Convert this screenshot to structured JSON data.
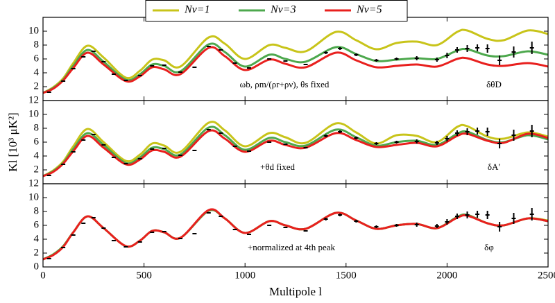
{
  "chart_data": [
    {
      "type": "line",
      "annotations": [
        "ωb, ρm/(ρr+ρν), θs fixed",
        "δθD"
      ],
      "x": [
        0,
        50,
        100,
        150,
        220,
        300,
        410,
        480,
        540,
        600,
        680,
        820,
        900,
        1000,
        1120,
        1200,
        1300,
        1450,
        1550,
        1650,
        1750,
        1850,
        1950,
        2050,
        2100,
        2200,
        2280,
        2400,
        2500
      ],
      "series": [
        {
          "name": "Nν=1",
          "color": "#c8c41a",
          "values": [
            1.1,
            1.9,
            3.2,
            5.4,
            7.9,
            6.2,
            3.3,
            4.3,
            5.9,
            5.8,
            4.9,
            9.1,
            8.2,
            6.0,
            8.0,
            7.6,
            7.1,
            9.9,
            8.7,
            7.4,
            8.3,
            8.5,
            8.0,
            9.9,
            10.1,
            8.9,
            8.7,
            10.1,
            9.6
          ]
        },
        {
          "name": "Nν=3",
          "color": "#4da84d",
          "values": [
            1.1,
            1.8,
            3.0,
            5.0,
            7.3,
            5.6,
            3.0,
            3.8,
            5.2,
            5.0,
            4.2,
            8.1,
            7.0,
            4.9,
            6.6,
            6.0,
            5.6,
            7.7,
            6.7,
            5.7,
            5.9,
            6.1,
            6.0,
            7.2,
            7.4,
            6.5,
            6.4,
            7.1,
            6.6
          ]
        },
        {
          "name": "Nν=5",
          "color": "#e8201e",
          "values": [
            1.1,
            1.7,
            2.9,
            4.7,
            6.9,
            5.2,
            2.8,
            3.5,
            4.8,
            4.5,
            3.8,
            7.6,
            6.4,
            4.4,
            5.9,
            5.3,
            4.8,
            6.9,
            5.8,
            4.8,
            5.0,
            5.2,
            4.9,
            6.0,
            6.1,
            5.2,
            5.0,
            5.4,
            4.9
          ]
        }
      ],
      "observations": {
        "x": [
          30,
          100,
          150,
          200,
          250,
          300,
          350,
          410,
          480,
          540,
          600,
          680,
          750,
          820,
          880,
          950,
          1020,
          1120,
          1200,
          1300,
          1400,
          1470,
          1550,
          1650,
          1750,
          1850,
          1950,
          2000,
          2050,
          2100,
          2150,
          2200,
          2260,
          2330,
          2420
        ],
        "values": [
          1.2,
          2.8,
          4.6,
          6.3,
          7.1,
          5.6,
          3.8,
          2.9,
          3.6,
          5.0,
          5.1,
          4.1,
          4.8,
          7.8,
          7.3,
          5.4,
          4.7,
          6.0,
          5.7,
          5.2,
          6.9,
          7.5,
          6.6,
          5.8,
          6.0,
          6.1,
          5.9,
          6.5,
          7.3,
          7.5,
          7.6,
          7.5,
          5.8,
          7.0,
          7.6
        ],
        "errors": [
          0.1,
          0.1,
          0.1,
          0.1,
          0.1,
          0.1,
          0.1,
          0.1,
          0.1,
          0.1,
          0.1,
          0.1,
          0.1,
          0.1,
          0.1,
          0.1,
          0.1,
          0.1,
          0.1,
          0.1,
          0.2,
          0.2,
          0.2,
          0.2,
          0.2,
          0.3,
          0.3,
          0.4,
          0.4,
          0.5,
          0.5,
          0.6,
          0.7,
          0.8,
          0.9
        ]
      },
      "xlim": [
        0,
        2500
      ],
      "xticks": [
        0,
        500,
        1000,
        1500,
        2000,
        2500
      ],
      "ylim": [
        0,
        12
      ],
      "yticks": [
        2,
        4,
        6,
        8,
        10
      ]
    },
    {
      "type": "line",
      "annotations": [
        "+θd fixed",
        "δA′"
      ],
      "x": [
        0,
        50,
        100,
        150,
        220,
        300,
        410,
        480,
        540,
        600,
        680,
        820,
        900,
        1000,
        1120,
        1200,
        1300,
        1450,
        1550,
        1650,
        1750,
        1850,
        1950,
        2050,
        2100,
        2200,
        2280,
        2400,
        2500
      ],
      "series": [
        {
          "color": "#c8c41a",
          "values": [
            1.1,
            1.9,
            3.2,
            5.4,
            7.9,
            6.0,
            3.3,
            4.2,
            5.8,
            5.5,
            4.6,
            8.8,
            7.7,
            5.4,
            7.3,
            6.7,
            5.9,
            8.7,
            7.4,
            5.8,
            7.0,
            6.9,
            6.0,
            8.2,
            8.3,
            6.8,
            6.5,
            7.4,
            6.8
          ]
        },
        {
          "color": "#4da84d",
          "values": [
            1.1,
            1.8,
            3.0,
            5.0,
            7.3,
            5.6,
            3.0,
            3.8,
            5.2,
            5.0,
            4.2,
            8.1,
            7.0,
            4.9,
            6.6,
            6.0,
            5.5,
            7.8,
            6.7,
            5.5,
            6.0,
            6.2,
            5.6,
            7.2,
            7.5,
            6.3,
            6.0,
            7.0,
            6.4
          ]
        },
        {
          "color": "#e8201e",
          "values": [
            1.1,
            1.7,
            2.9,
            4.7,
            6.9,
            5.2,
            2.8,
            3.5,
            4.8,
            4.6,
            3.9,
            7.6,
            6.5,
            4.6,
            6.2,
            5.6,
            5.2,
            7.3,
            6.3,
            5.3,
            5.6,
            5.9,
            5.4,
            6.9,
            7.2,
            6.2,
            5.9,
            7.2,
            6.6
          ]
        }
      ],
      "observations": {
        "x": [
          30,
          100,
          150,
          200,
          250,
          300,
          350,
          410,
          480,
          540,
          600,
          680,
          750,
          820,
          880,
          950,
          1020,
          1120,
          1200,
          1300,
          1400,
          1470,
          1550,
          1650,
          1750,
          1850,
          1950,
          2000,
          2050,
          2100,
          2150,
          2200,
          2260,
          2330,
          2420
        ],
        "values": [
          1.2,
          2.8,
          4.6,
          6.3,
          7.1,
          5.6,
          3.8,
          2.9,
          3.6,
          5.0,
          5.1,
          4.1,
          4.8,
          7.8,
          7.3,
          5.4,
          4.7,
          6.0,
          5.7,
          5.2,
          6.9,
          7.5,
          6.6,
          5.8,
          6.0,
          6.1,
          5.9,
          6.5,
          7.3,
          7.5,
          7.6,
          7.5,
          5.8,
          7.0,
          7.6
        ],
        "errors": [
          0.1,
          0.1,
          0.1,
          0.1,
          0.1,
          0.1,
          0.1,
          0.1,
          0.1,
          0.1,
          0.1,
          0.1,
          0.1,
          0.1,
          0.1,
          0.1,
          0.1,
          0.1,
          0.1,
          0.1,
          0.2,
          0.2,
          0.2,
          0.2,
          0.2,
          0.3,
          0.3,
          0.4,
          0.4,
          0.5,
          0.5,
          0.6,
          0.7,
          0.8,
          0.9
        ]
      },
      "xlim": [
        0,
        2500
      ],
      "xticks": [
        0,
        500,
        1000,
        1500,
        2000,
        2500
      ],
      "ylim": [
        0,
        12
      ],
      "yticks": [
        2,
        4,
        6,
        8,
        10,
        12
      ]
    },
    {
      "type": "line",
      "annotations": [
        "+normalized at 4th peak",
        "δφ"
      ],
      "x": [
        0,
        50,
        100,
        150,
        220,
        300,
        410,
        480,
        540,
        600,
        680,
        820,
        900,
        1000,
        1120,
        1200,
        1300,
        1450,
        1550,
        1650,
        1750,
        1850,
        1950,
        2050,
        2100,
        2200,
        2280,
        2400,
        2500
      ],
      "series": [
        {
          "color": "#c8c41a",
          "values": [
            1.1,
            1.8,
            3.0,
            5.0,
            7.3,
            5.6,
            3.0,
            3.8,
            5.2,
            5.0,
            4.2,
            8.1,
            7.0,
            4.9,
            6.6,
            6.0,
            5.5,
            7.8,
            6.7,
            5.5,
            6.0,
            6.2,
            5.6,
            7.2,
            7.5,
            6.3,
            6.0,
            7.0,
            6.7
          ]
        },
        {
          "color": "#4da84d",
          "values": [
            1.1,
            1.8,
            3.0,
            5.0,
            7.3,
            5.6,
            3.0,
            3.8,
            5.2,
            5.0,
            4.2,
            8.1,
            7.0,
            4.9,
            6.6,
            6.0,
            5.5,
            7.8,
            6.7,
            5.5,
            6.0,
            6.2,
            5.6,
            7.2,
            7.5,
            6.3,
            6.0,
            7.0,
            6.6
          ]
        },
        {
          "color": "#e8201e",
          "values": [
            1.1,
            1.7,
            2.9,
            5.0,
            7.3,
            5.6,
            3.0,
            3.8,
            5.2,
            5.0,
            4.2,
            8.2,
            7.0,
            4.9,
            6.6,
            6.0,
            5.5,
            7.8,
            6.7,
            5.5,
            6.0,
            6.2,
            5.6,
            7.1,
            7.4,
            6.3,
            6.0,
            7.0,
            6.6
          ]
        }
      ],
      "observations": {
        "x": [
          30,
          100,
          150,
          200,
          250,
          300,
          350,
          410,
          480,
          540,
          600,
          680,
          750,
          820,
          880,
          950,
          1020,
          1120,
          1200,
          1300,
          1400,
          1470,
          1550,
          1650,
          1750,
          1850,
          1950,
          2000,
          2050,
          2100,
          2150,
          2200,
          2260,
          2330,
          2420
        ],
        "values": [
          1.2,
          2.8,
          4.6,
          6.3,
          7.1,
          5.6,
          3.8,
          2.9,
          3.6,
          5.0,
          5.1,
          4.1,
          4.8,
          7.8,
          7.3,
          5.4,
          4.7,
          6.0,
          5.7,
          5.2,
          6.9,
          7.5,
          6.6,
          5.8,
          6.0,
          6.1,
          5.9,
          6.5,
          7.3,
          7.5,
          7.6,
          7.5,
          5.8,
          7.0,
          7.6
        ],
        "errors": [
          0.1,
          0.1,
          0.1,
          0.1,
          0.1,
          0.1,
          0.1,
          0.1,
          0.1,
          0.1,
          0.1,
          0.1,
          0.1,
          0.1,
          0.1,
          0.1,
          0.1,
          0.1,
          0.1,
          0.1,
          0.2,
          0.2,
          0.2,
          0.2,
          0.2,
          0.3,
          0.3,
          0.4,
          0.4,
          0.5,
          0.5,
          0.6,
          0.7,
          0.8,
          0.9
        ]
      },
      "xlim": [
        0,
        2500
      ],
      "xticks": [
        0,
        500,
        1000,
        1500,
        2000,
        2500
      ],
      "ylim": [
        0,
        12
      ],
      "yticks": [
        0,
        2,
        4,
        6,
        8,
        10,
        12
      ],
      "xlabel": "Multipole l",
      "ylabel": "Kl [10³ μK²]"
    }
  ]
}
